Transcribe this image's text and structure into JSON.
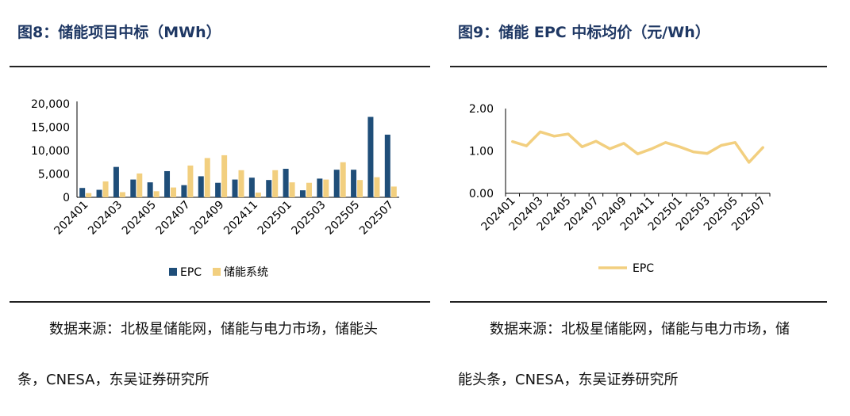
{
  "colors": {
    "epc": "#1f4e79",
    "system": "#f2cf7f",
    "title": "#1f3864"
  },
  "left": {
    "title": "图8：储能项目中标（MWh）",
    "source": "数据来源：北极星储能网，储能与电力市场，储能头条，CNESA，东吴证券研究所",
    "source_line1": "数据来源：北极星储能网，储能与电力市场，储能头",
    "source_line2": "条，CNESA，东吴证券研究所"
  },
  "right": {
    "title": "图9：储能 EPC 中标均价（元/Wh）",
    "source": "数据来源：北极星储能网，储能与电力市场，储能头条，CNESA，东吴证券研究所",
    "source_line1": "数据来源：北极星储能网，储能与电力市场，储",
    "source_line2": "能头条，CNESA，东吴证券研究所"
  },
  "chart_data": [
    {
      "type": "bar",
      "title": "储能项目中标（MWh）",
      "categories": [
        "202401",
        "202402",
        "202403",
        "202404",
        "202405",
        "202406",
        "202407",
        "202408",
        "202409",
        "202410",
        "202411",
        "202412",
        "202501",
        "202502",
        "202503",
        "202504",
        "202505",
        "202506",
        "202507"
      ],
      "tick_labels": [
        "202401",
        "202403",
        "202405",
        "202407",
        "202409",
        "202411",
        "202501",
        "202503",
        "202505",
        "202507"
      ],
      "series": [
        {
          "name": "EPC",
          "values": [
            2000,
            1600,
            6500,
            3800,
            3200,
            5600,
            2600,
            4500,
            3100,
            3800,
            4200,
            3700,
            6100,
            1500,
            4000,
            5900,
            5900,
            17200,
            13400
          ]
        },
        {
          "name": "储能系统",
          "values": [
            900,
            3400,
            1100,
            5100,
            1300,
            2100,
            6800,
            8400,
            9000,
            5800,
            1000,
            5800,
            3200,
            3100,
            3800,
            7500,
            3700,
            4300,
            2300
          ]
        }
      ],
      "yticks": [
        "20,000",
        "15,000",
        "10,000",
        "5,000",
        "0"
      ],
      "ylim": [
        0,
        20000
      ],
      "legend": "bottom"
    },
    {
      "type": "line",
      "title": "储能 EPC 中标均价（元/Wh）",
      "categories": [
        "202401",
        "202402",
        "202403",
        "202404",
        "202405",
        "202406",
        "202407",
        "202408",
        "202409",
        "202410",
        "202411",
        "202412",
        "202501",
        "202502",
        "202503",
        "202504",
        "202505",
        "202506",
        "202507"
      ],
      "tick_labels": [
        "202401",
        "202403",
        "202405",
        "202407",
        "202409",
        "202411",
        "202501",
        "202503",
        "202505",
        "202507"
      ],
      "series": [
        {
          "name": "EPC",
          "values": [
            1.22,
            1.12,
            1.45,
            1.35,
            1.4,
            1.1,
            1.23,
            1.05,
            1.18,
            0.93,
            1.05,
            1.2,
            1.1,
            0.98,
            0.94,
            1.13,
            1.2,
            0.73,
            1.08
          ]
        }
      ],
      "yticks": [
        "2.00",
        "1.00",
        "0.00"
      ],
      "ylim": [
        0,
        2
      ],
      "legend": "bottom"
    }
  ]
}
